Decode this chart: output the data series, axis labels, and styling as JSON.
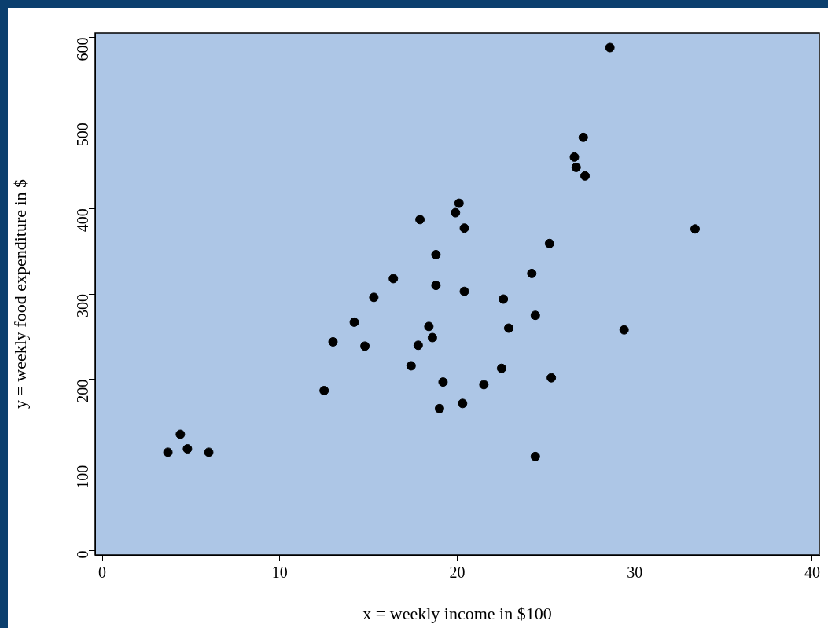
{
  "chart_data": {
    "type": "scatter",
    "xlabel": "x = weekly income in $100",
    "ylabel": "y = weekly food expenditure in $",
    "x": [
      3.7,
      4.4,
      4.8,
      6.0,
      12.5,
      13.0,
      14.2,
      14.8,
      15.3,
      16.4,
      17.4,
      17.8,
      17.9,
      18.4,
      18.6,
      18.8,
      18.8,
      19.0,
      19.2,
      19.9,
      20.1,
      20.3,
      20.4,
      20.4,
      21.5,
      22.5,
      22.6,
      22.9,
      24.2,
      24.4,
      24.4,
      25.2,
      25.3,
      26.6,
      26.7,
      27.1,
      27.2,
      28.6,
      29.4,
      33.4
    ],
    "series": [
      {
        "color": "#000000",
        "values": [
          115,
          136,
          119,
          115,
          187,
          244,
          267,
          239,
          296,
          318,
          216,
          240,
          387,
          262,
          249,
          310,
          346,
          166,
          197,
          395,
          406,
          172,
          303,
          377,
          194,
          213,
          294,
          260,
          324,
          275,
          110,
          359,
          202,
          460,
          448,
          483,
          438,
          588,
          258,
          376
        ]
      }
    ],
    "xlim": [
      -0.4,
      40.4
    ],
    "ylim": [
      -5,
      605
    ],
    "xticks": [
      0,
      10,
      20,
      30,
      40
    ],
    "yticks": [
      0,
      100,
      200,
      300,
      400,
      500,
      600
    ],
    "grid": false,
    "legend": false,
    "marker": "circle"
  }
}
